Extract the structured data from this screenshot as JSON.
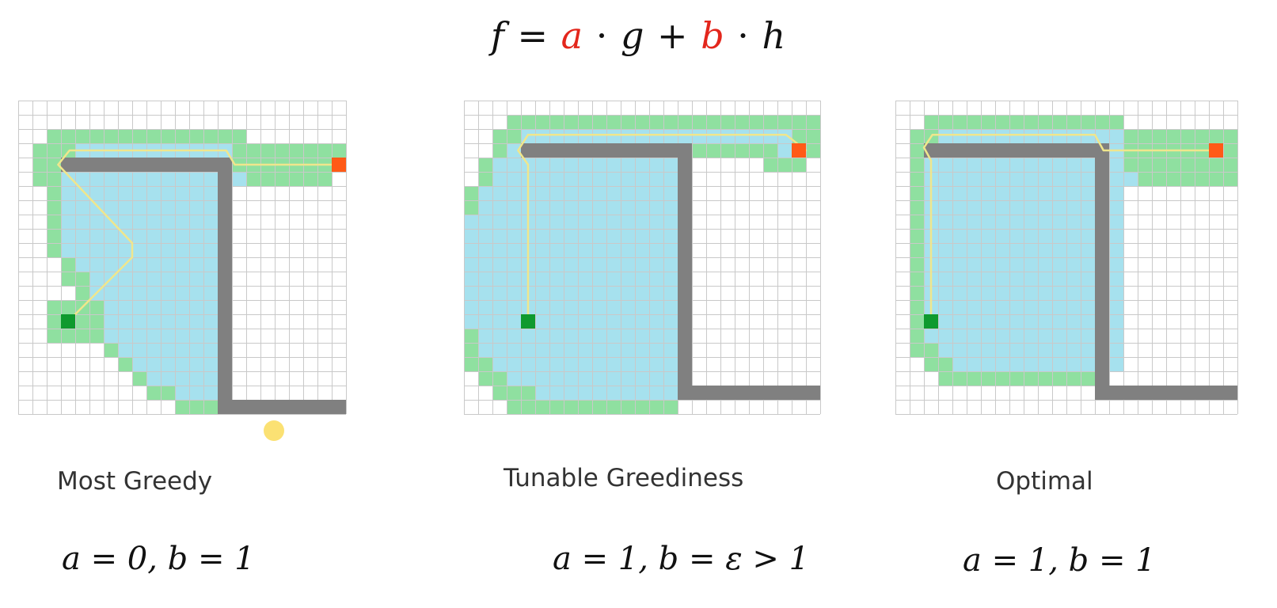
{
  "formula": {
    "lhs": "f",
    "eq": "=",
    "a": "a",
    "dot1": "·",
    "g": "g",
    "plus": "+",
    "b": "b",
    "dot2": "·",
    "h": "h"
  },
  "colors": {
    "open": "#8fe0a0",
    "closed": "#a6e1ee",
    "wall": "#808080",
    "grid": "#c9c9c9",
    "start": "#0f9a2e",
    "goal": "#ff5a17",
    "path": "#f0e68c",
    "highlight": "#e3261c"
  },
  "panels": [
    {
      "caption": "Most Greedy",
      "params": "a = 0, b = 1"
    },
    {
      "caption": "Tunable Greediness",
      "params": "a = 1, b = ε > 1"
    },
    {
      "caption": "Optimal",
      "params": "a = 1, b = 1"
    }
  ]
}
